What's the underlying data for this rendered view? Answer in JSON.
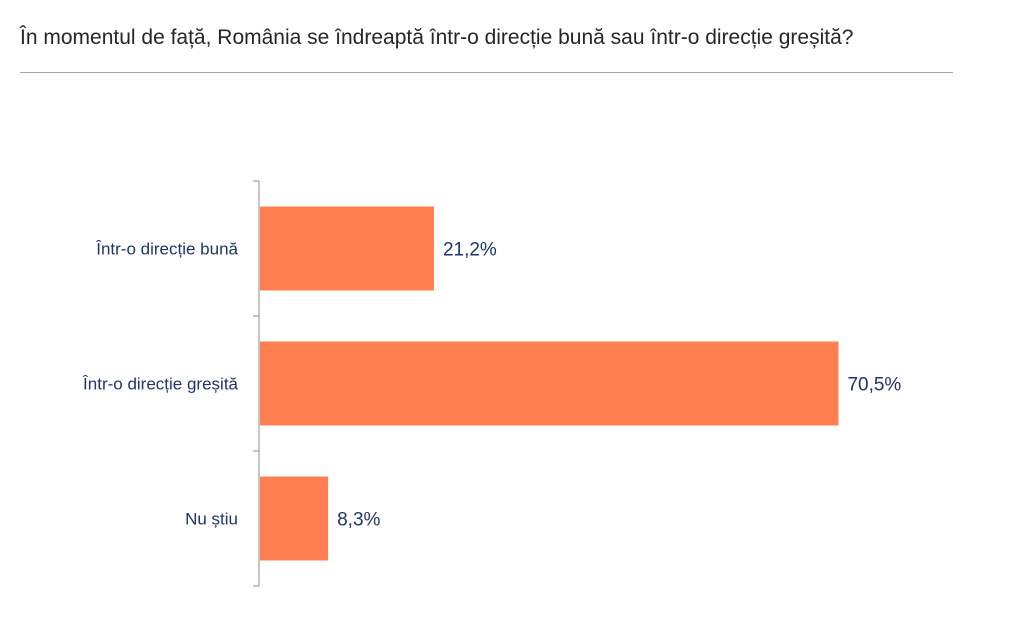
{
  "question": "În momentul de față, România se îndreaptă într-o direcție bună sau într-o direcție greșită?",
  "colors": {
    "bar": "#ff7f50",
    "label": "#1f3468",
    "axis": "#8c8c8c"
  },
  "chart_data": {
    "type": "bar",
    "orientation": "horizontal",
    "categories": [
      "Într-o direcție bună",
      "Într-o direcție greșită",
      "Nu știu"
    ],
    "values": [
      21.2,
      70.5,
      8.3
    ],
    "value_labels": [
      "21,2%",
      "70,5%",
      "8,3%"
    ],
    "xlim": [
      0,
      100
    ],
    "grid": false,
    "legend": "none"
  }
}
